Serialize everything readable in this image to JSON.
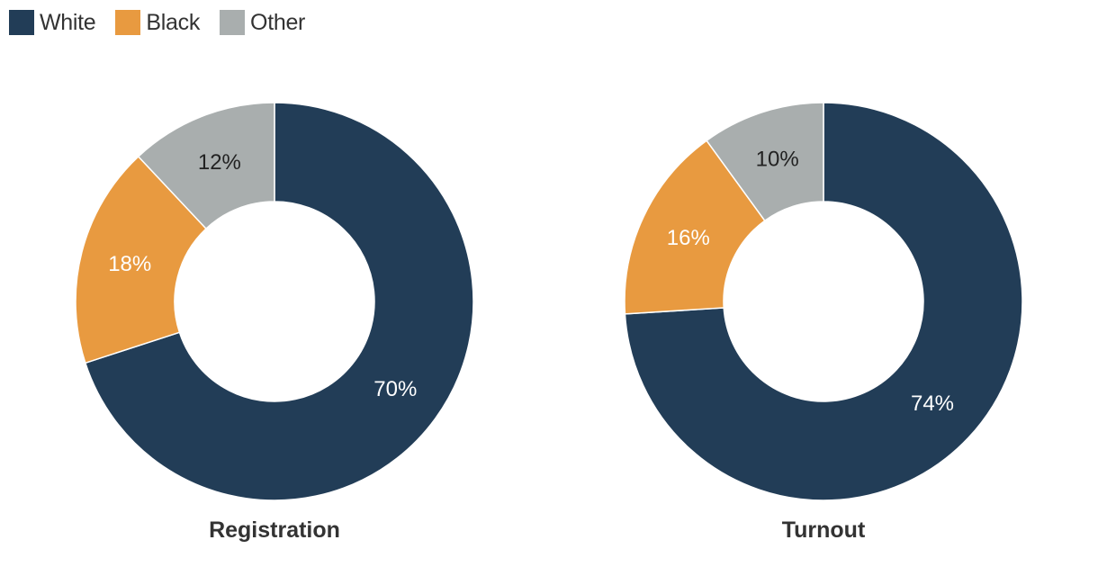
{
  "legend": {
    "items": [
      {
        "label": "White",
        "color": "#223d57"
      },
      {
        "label": "Black",
        "color": "#e89a40"
      },
      {
        "label": "Other",
        "color": "#a9aeae"
      }
    ]
  },
  "chart_data": [
    {
      "type": "pie",
      "title": "Registration",
      "categories": [
        "White",
        "Black",
        "Other"
      ],
      "values": [
        70,
        18,
        12
      ],
      "labels": [
        "70%",
        "18%",
        "12%"
      ]
    },
    {
      "type": "pie",
      "title": "Turnout",
      "categories": [
        "White",
        "Black",
        "Other"
      ],
      "values": [
        74,
        16,
        10
      ],
      "labels": [
        "74%",
        "16%",
        "10%"
      ]
    }
  ]
}
